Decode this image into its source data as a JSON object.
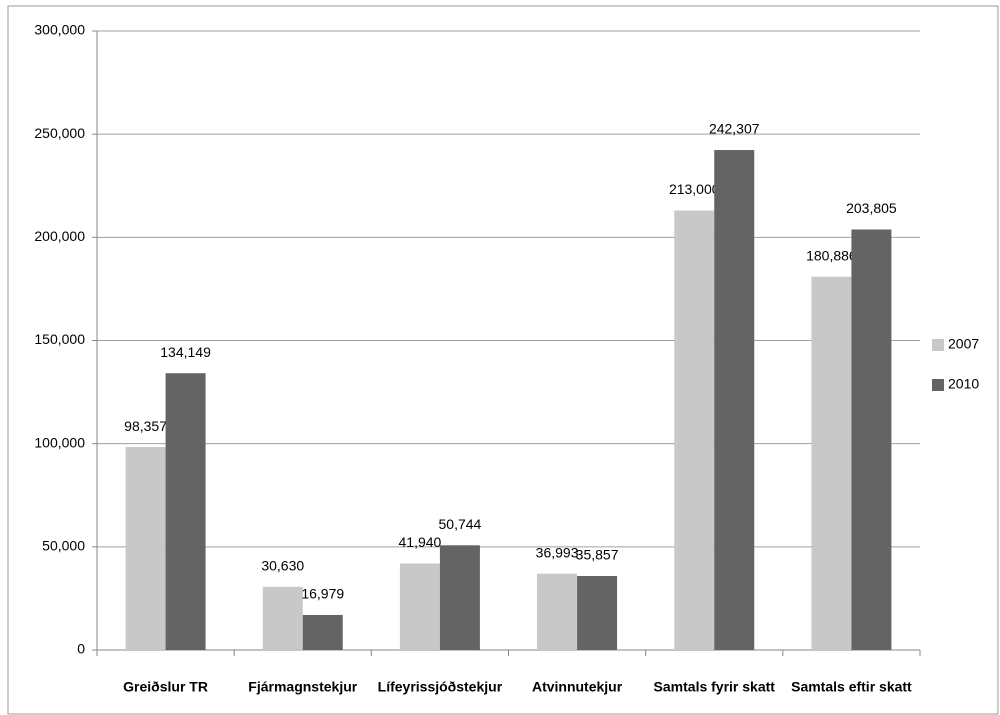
{
  "chart_data": {
    "type": "bar",
    "categories": [
      "Greiðslur TR",
      "Fjármagnstekjur",
      "Lífeyrissjóðstekjur",
      "Atvinnutekjur",
      "Samtals fyrir skatt",
      "Samtals eftir skatt"
    ],
    "series": [
      {
        "name": "2007",
        "color": "#c8c8c8",
        "values": [
          98357,
          30630,
          41940,
          36993,
          213000,
          180886
        ],
        "value_labels": [
          "98,357",
          "30,630",
          "41,940",
          "36,993",
          "213,000",
          "180,886"
        ]
      },
      {
        "name": "2010",
        "color": "#646464",
        "values": [
          134149,
          16979,
          50744,
          35857,
          242307,
          203805
        ],
        "value_labels": [
          "134,149",
          "16,979",
          "50,744",
          "35,857",
          "242,307",
          "203,805"
        ]
      }
    ],
    "ylim": [
      0,
      300000
    ],
    "yticks": [
      0,
      {
        "value": 50000,
        "label": "50,000"
      },
      {
        "value": 100000,
        "label": "100,000"
      },
      {
        "value": 150000,
        "label": "150,000"
      },
      {
        "value": 200000,
        "label": "200,000"
      },
      {
        "value": 250000,
        "label": "250,000"
      },
      {
        "value": 300000,
        "label": "300,000"
      }
    ],
    "grid": true,
    "legend": "right"
  }
}
